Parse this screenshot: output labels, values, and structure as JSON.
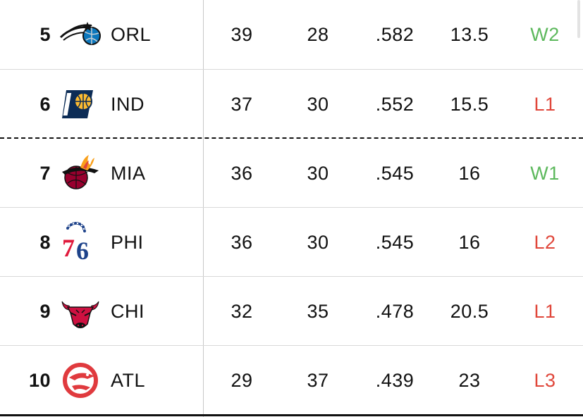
{
  "standings": {
    "rows": [
      {
        "rank": "5",
        "team": "ORL",
        "logo": "orlando-magic-logo-icon",
        "w": "39",
        "l": "28",
        "pct": ".582",
        "gb": "13.5",
        "streak": "W2",
        "streak_type": "win"
      },
      {
        "rank": "6",
        "team": "IND",
        "logo": "indiana-pacers-logo-icon",
        "w": "37",
        "l": "30",
        "pct": ".552",
        "gb": "15.5",
        "streak": "L1",
        "streak_type": "loss"
      },
      {
        "rank": "7",
        "team": "MIA",
        "logo": "miami-heat-logo-icon",
        "w": "36",
        "l": "30",
        "pct": ".545",
        "gb": "16",
        "streak": "W1",
        "streak_type": "win"
      },
      {
        "rank": "8",
        "team": "PHI",
        "logo": "philadelphia-76ers-logo-icon",
        "w": "36",
        "l": "30",
        "pct": ".545",
        "gb": "16",
        "streak": "L2",
        "streak_type": "loss"
      },
      {
        "rank": "9",
        "team": "CHI",
        "logo": "chicago-bulls-logo-icon",
        "w": "32",
        "l": "35",
        "pct": ".478",
        "gb": "20.5",
        "streak": "L1",
        "streak_type": "loss"
      },
      {
        "rank": "10",
        "team": "ATL",
        "logo": "atlanta-hawks-logo-icon",
        "w": "29",
        "l": "37",
        "pct": ".439",
        "gb": "23",
        "streak": "L3",
        "streak_type": "loss"
      }
    ]
  },
  "colors": {
    "win": "#5cb85c",
    "loss": "#e0463a",
    "divider": "#d9d9d9",
    "playoff_cutoff": "#111111"
  }
}
